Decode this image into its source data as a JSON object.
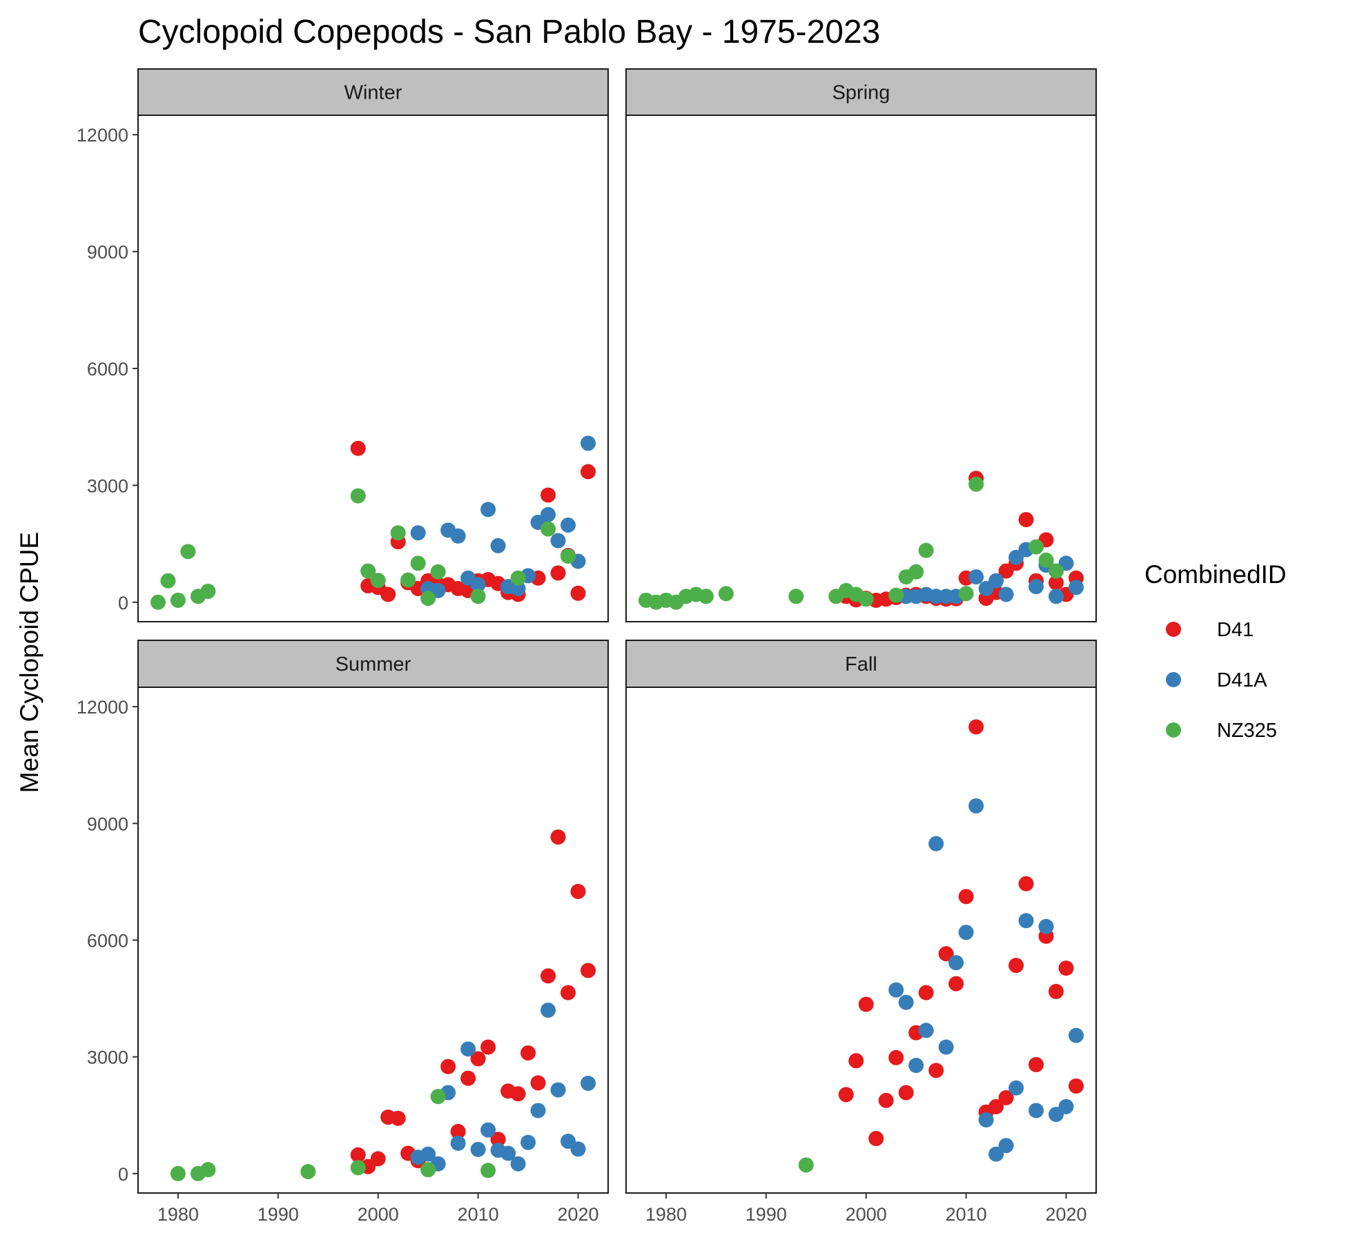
{
  "chart_data": {
    "type": "scatter",
    "title": "Cyclopoid Copepods - San Pablo Bay - 1975-2023",
    "xlabel": "",
    "ylabel": "Mean Cyclopoid CPUE",
    "xlim": [
      1976,
      2023
    ],
    "ylim": [
      -500,
      12500
    ],
    "x_ticks": [
      1980,
      1990,
      2000,
      2010,
      2020
    ],
    "x_tick_labels": [
      "1980",
      "1990",
      "2000",
      "2010",
      "2020"
    ],
    "y_ticks": [
      0,
      3000,
      6000,
      9000,
      12000
    ],
    "y_tick_labels": [
      "0",
      "3000",
      "6000",
      "9000",
      "12000"
    ],
    "grid": false,
    "legend": {
      "title": "CombinedID",
      "position": "right",
      "entries": [
        {
          "name": "D41",
          "color": "#E41A1C"
        },
        {
          "name": "D41A",
          "color": "#377EB8"
        },
        {
          "name": "NZ325",
          "color": "#4DAF4A"
        }
      ]
    },
    "panels": [
      {
        "label": "Winter",
        "series": [
          {
            "name": "D41",
            "points": [
              [
                1998,
                3950
              ],
              [
                1999,
                420
              ],
              [
                2000,
                380
              ],
              [
                2001,
                200
              ],
              [
                2002,
                1550
              ],
              [
                2003,
                500
              ],
              [
                2004,
                350
              ],
              [
                2005,
                550
              ],
              [
                2006,
                450
              ],
              [
                2007,
                450
              ],
              [
                2008,
                350
              ],
              [
                2009,
                300
              ],
              [
                2010,
                550
              ],
              [
                2011,
                580
              ],
              [
                2012,
                480
              ],
              [
                2013,
                250
              ],
              [
                2014,
                200
              ],
              [
                2016,
                620
              ],
              [
                2017,
                2750
              ],
              [
                2018,
                750
              ],
              [
                2019,
                1200
              ],
              [
                2020,
                230
              ],
              [
                2021,
                3350
              ]
            ]
          },
          {
            "name": "D41A",
            "points": [
              [
                2004,
                1780
              ],
              [
                2005,
                350
              ],
              [
                2006,
                300
              ],
              [
                2007,
                1850
              ],
              [
                2008,
                1700
              ],
              [
                2009,
                620
              ],
              [
                2010,
                450
              ],
              [
                2011,
                2380
              ],
              [
                2012,
                1450
              ],
              [
                2013,
                400
              ],
              [
                2014,
                350
              ],
              [
                2015,
                680
              ],
              [
                2016,
                2050
              ],
              [
                2017,
                2250
              ],
              [
                2018,
                1580
              ],
              [
                2019,
                1980
              ],
              [
                2020,
                1050
              ],
              [
                2021,
                4080
              ]
            ]
          },
          {
            "name": "NZ325",
            "points": [
              [
                1978,
                0
              ],
              [
                1979,
                550
              ],
              [
                1980,
                50
              ],
              [
                1981,
                1300
              ],
              [
                1982,
                150
              ],
              [
                1983,
                280
              ],
              [
                1998,
                2730
              ],
              [
                1999,
                800
              ],
              [
                2000,
                560
              ],
              [
                2002,
                1780
              ],
              [
                2003,
                570
              ],
              [
                2004,
                1000
              ],
              [
                2005,
                100
              ],
              [
                2006,
                780
              ],
              [
                2010,
                150
              ],
              [
                2014,
                620
              ],
              [
                2017,
                1880
              ],
              [
                2019,
                1180
              ]
            ]
          }
        ]
      },
      {
        "label": "Spring",
        "series": [
          {
            "name": "D41",
            "points": [
              [
                1998,
                150
              ],
              [
                1999,
                60
              ],
              [
                2000,
                100
              ],
              [
                2001,
                50
              ],
              [
                2002,
                80
              ],
              [
                2003,
                120
              ],
              [
                2004,
                180
              ],
              [
                2005,
                200
              ],
              [
                2006,
                150
              ],
              [
                2007,
                100
              ],
              [
                2008,
                80
              ],
              [
                2009,
                90
              ],
              [
                2010,
                620
              ],
              [
                2011,
                3180
              ],
              [
                2012,
                100
              ],
              [
                2013,
                250
              ],
              [
                2014,
                800
              ],
              [
                2015,
                1000
              ],
              [
                2016,
                2120
              ],
              [
                2017,
                550
              ],
              [
                2018,
                1600
              ],
              [
                2019,
                500
              ],
              [
                2020,
                200
              ],
              [
                2021,
                620
              ]
            ]
          },
          {
            "name": "D41A",
            "points": [
              [
                2004,
                150
              ],
              [
                2005,
                150
              ],
              [
                2006,
                200
              ],
              [
                2007,
                150
              ],
              [
                2008,
                150
              ],
              [
                2009,
                150
              ],
              [
                2011,
                650
              ],
              [
                2012,
                350
              ],
              [
                2013,
                550
              ],
              [
                2014,
                200
              ],
              [
                2015,
                1150
              ],
              [
                2016,
                1350
              ],
              [
                2017,
                400
              ],
              [
                2018,
                950
              ],
              [
                2019,
                150
              ],
              [
                2020,
                1000
              ],
              [
                2021,
                380
              ]
            ]
          },
          {
            "name": "NZ325",
            "points": [
              [
                1978,
                50
              ],
              [
                1979,
                0
              ],
              [
                1980,
                50
              ],
              [
                1981,
                0
              ],
              [
                1982,
                150
              ],
              [
                1983,
                200
              ],
              [
                1984,
                150
              ],
              [
                1986,
                220
              ],
              [
                1993,
                150
              ],
              [
                1997,
                150
              ],
              [
                1998,
                300
              ],
              [
                1999,
                200
              ],
              [
                2000,
                80
              ],
              [
                2003,
                180
              ],
              [
                2004,
                650
              ],
              [
                2005,
                780
              ],
              [
                2006,
                1330
              ],
              [
                2010,
                220
              ],
              [
                2011,
                3030
              ],
              [
                2017,
                1420
              ],
              [
                2018,
                1080
              ],
              [
                2019,
                800
              ]
            ]
          }
        ]
      },
      {
        "label": "Summer",
        "series": [
          {
            "name": "D41",
            "points": [
              [
                1998,
                480
              ],
              [
                1999,
                180
              ],
              [
                2000,
                380
              ],
              [
                2001,
                1450
              ],
              [
                2002,
                1420
              ],
              [
                2003,
                520
              ],
              [
                2004,
                330
              ],
              [
                2007,
                2750
              ],
              [
                2008,
                1080
              ],
              [
                2009,
                2450
              ],
              [
                2010,
                2950
              ],
              [
                2011,
                3250
              ],
              [
                2012,
                880
              ],
              [
                2013,
                2120
              ],
              [
                2014,
                2050
              ],
              [
                2015,
                3100
              ],
              [
                2016,
                2330
              ],
              [
                2017,
                5080
              ],
              [
                2018,
                8650
              ],
              [
                2019,
                4650
              ],
              [
                2020,
                7250
              ],
              [
                2021,
                5220
              ]
            ]
          },
          {
            "name": "D41A",
            "points": [
              [
                2004,
                420
              ],
              [
                2005,
                500
              ],
              [
                2006,
                250
              ],
              [
                2007,
                2080
              ],
              [
                2008,
                780
              ],
              [
                2009,
                3200
              ],
              [
                2010,
                620
              ],
              [
                2011,
                1120
              ],
              [
                2012,
                600
              ],
              [
                2013,
                520
              ],
              [
                2014,
                250
              ],
              [
                2015,
                800
              ],
              [
                2016,
                1620
              ],
              [
                2017,
                4200
              ],
              [
                2018,
                2150
              ],
              [
                2019,
                830
              ],
              [
                2020,
                630
              ],
              [
                2021,
                2320
              ]
            ]
          },
          {
            "name": "NZ325",
            "points": [
              [
                1980,
                0
              ],
              [
                1982,
                0
              ],
              [
                1983,
                100
              ],
              [
                1993,
                50
              ],
              [
                1998,
                150
              ],
              [
                2005,
                100
              ],
              [
                2006,
                1980
              ],
              [
                2011,
                80
              ]
            ]
          }
        ]
      },
      {
        "label": "Fall",
        "series": [
          {
            "name": "D41",
            "points": [
              [
                1998,
                2030
              ],
              [
                1999,
                2900
              ],
              [
                2000,
                4350
              ],
              [
                2001,
                900
              ],
              [
                2002,
                1880
              ],
              [
                2003,
                2980
              ],
              [
                2004,
                2080
              ],
              [
                2005,
                3620
              ],
              [
                2006,
                4650
              ],
              [
                2007,
                2650
              ],
              [
                2008,
                5650
              ],
              [
                2009,
                4880
              ],
              [
                2010,
                7120
              ],
              [
                2011,
                11480
              ],
              [
                2012,
                1580
              ],
              [
                2013,
                1720
              ],
              [
                2014,
                1950
              ],
              [
                2015,
                5350
              ],
              [
                2016,
                7450
              ],
              [
                2017,
                2800
              ],
              [
                2018,
                6100
              ],
              [
                2019,
                4680
              ],
              [
                2020,
                5280
              ],
              [
                2021,
                2250
              ]
            ]
          },
          {
            "name": "D41A",
            "points": [
              [
                2003,
                4720
              ],
              [
                2004,
                4400
              ],
              [
                2005,
                2780
              ],
              [
                2006,
                3680
              ],
              [
                2007,
                8480
              ],
              [
                2008,
                3250
              ],
              [
                2009,
                5420
              ],
              [
                2010,
                6200
              ],
              [
                2011,
                9450
              ],
              [
                2012,
                1380
              ],
              [
                2013,
                500
              ],
              [
                2014,
                720
              ],
              [
                2015,
                2200
              ],
              [
                2016,
                6500
              ],
              [
                2017,
                1620
              ],
              [
                2018,
                6350
              ],
              [
                2019,
                1520
              ],
              [
                2020,
                1720
              ],
              [
                2021,
                3550
              ]
            ]
          },
          {
            "name": "NZ325",
            "points": [
              [
                1994,
                220
              ]
            ]
          }
        ]
      }
    ]
  }
}
